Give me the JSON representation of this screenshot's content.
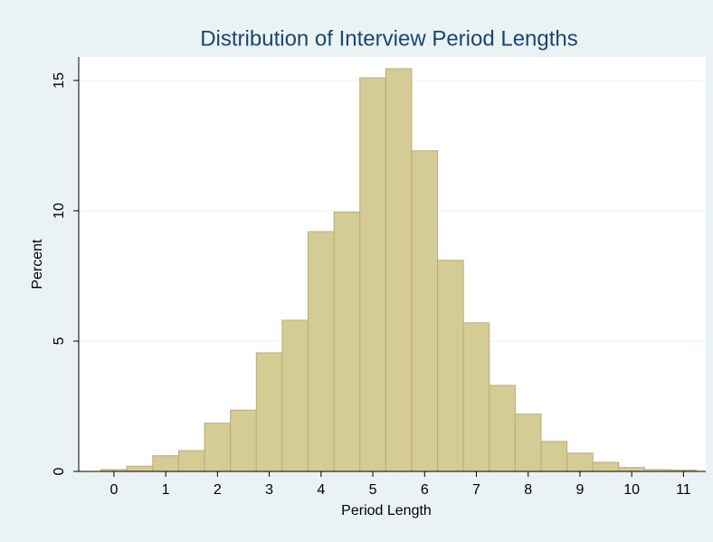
{
  "chart_data": {
    "type": "histogram",
    "title": "Distribution of Interview Period Lengths",
    "xlabel": "Period Length",
    "ylabel": "Percent",
    "bins": [
      -0.25,
      0.25,
      0.75,
      1.25,
      1.75,
      2.25,
      2.75,
      3.25,
      3.75,
      4.25,
      4.75,
      5.25,
      5.75,
      6.25,
      6.75,
      7.25,
      7.75,
      8.25,
      8.75,
      9.25,
      9.75,
      10.25,
      10.75,
      11.25
    ],
    "values": [
      0.07,
      0.2,
      0.6,
      0.8,
      1.85,
      2.35,
      4.55,
      5.8,
      9.2,
      9.95,
      15.1,
      15.45,
      12.3,
      8.1,
      5.7,
      3.3,
      2.2,
      1.15,
      0.7,
      0.35,
      0.15,
      0.07,
      0.05
    ],
    "color": "#d5cc95",
    "edgecolor": "#b8ad72",
    "xlim": [
      -0.68,
      11.43
    ],
    "ylim": [
      0,
      15.9
    ],
    "xticks": [
      0,
      1,
      2,
      3,
      4,
      5,
      6,
      7,
      8,
      9,
      10,
      11
    ],
    "yticks": [
      0,
      5,
      10,
      15
    ],
    "grid": true
  }
}
